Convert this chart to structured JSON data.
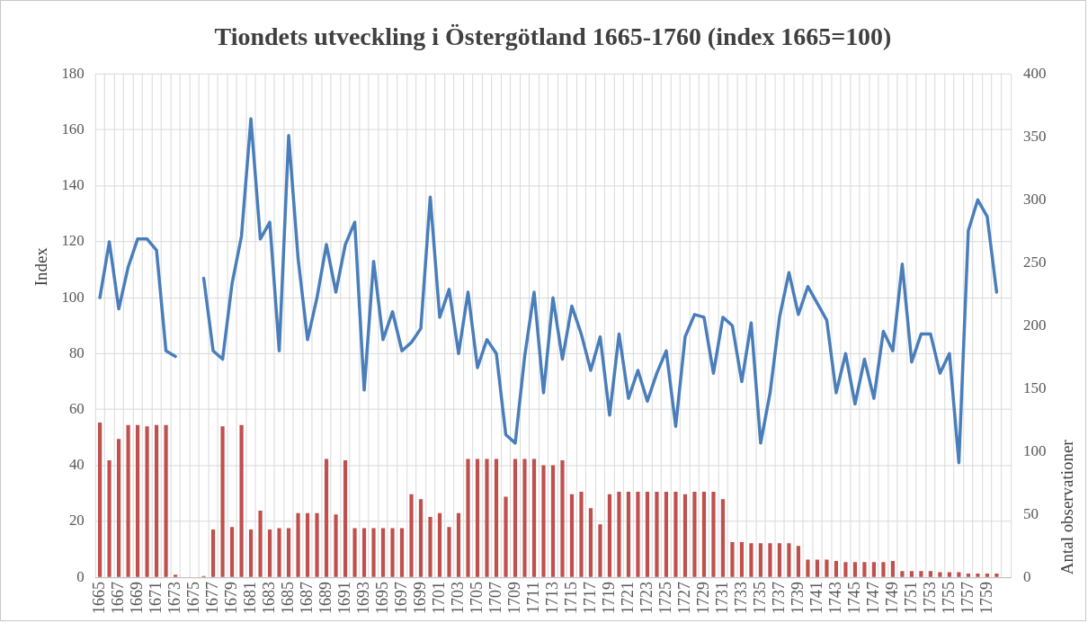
{
  "chart_data": {
    "type": "line",
    "title": "Tiondets utveckling i Östergötland 1665-1760 (index 1665=100)",
    "ylabel": "Index",
    "y2label": "Antal observationer",
    "categories": [
      "1665",
      null,
      "1667",
      null,
      "1669",
      null,
      "1671",
      null,
      "1673",
      null,
      "1675",
      null,
      "1677",
      null,
      "1679",
      null,
      "1681",
      null,
      "1683",
      null,
      "1685",
      null,
      "1687",
      null,
      "1689",
      null,
      "1691",
      null,
      "1693",
      null,
      "1695",
      null,
      "1697",
      null,
      "1699",
      null,
      "1701",
      null,
      "1703",
      null,
      "1705",
      null,
      "1707",
      null,
      "1709",
      null,
      "1711",
      null,
      "1713",
      null,
      "1715",
      null,
      "1717",
      null,
      "1719",
      null,
      "1721",
      null,
      "1723",
      null,
      "1725",
      null,
      "1727",
      null,
      "1729",
      null,
      "1731",
      null,
      "1733",
      null,
      "1735",
      null,
      "1737",
      null,
      "1739",
      null,
      "1741",
      null,
      "1743",
      null,
      "1745",
      null,
      "1747",
      null,
      "1749",
      null,
      "1751",
      null,
      "1753",
      null,
      "1755",
      null,
      "1757",
      null,
      "1759",
      null,
      null
    ],
    "series": [
      {
        "type": "bar",
        "axis": "y2",
        "color": "#c0504d",
        "values": [
          123,
          93,
          110,
          121,
          121,
          120,
          121,
          121,
          2,
          null,
          null,
          1,
          38,
          120,
          40,
          121,
          38,
          53,
          38,
          39,
          39,
          51,
          51,
          51,
          94,
          50,
          93,
          39,
          39,
          39,
          39,
          39,
          39,
          66,
          62,
          48,
          51,
          40,
          51,
          94,
          94,
          94,
          94,
          64,
          94,
          94,
          94,
          89,
          89,
          93,
          66,
          68,
          55,
          42,
          66,
          68,
          68,
          68,
          68,
          68,
          68,
          68,
          66,
          68,
          68,
          68,
          62,
          28,
          28,
          27,
          27,
          27,
          27,
          27,
          25,
          14,
          14,
          14,
          13,
          12,
          12,
          12,
          12,
          12,
          13,
          5,
          5,
          5,
          5,
          4,
          4,
          4,
          3,
          3,
          3,
          3,
          null
        ]
      },
      {
        "color": "#4a7ebb",
        "values": [
          100,
          120,
          96,
          111,
          121,
          121,
          117,
          81,
          79,
          null,
          null,
          107,
          81,
          78,
          105,
          122,
          164,
          121,
          127,
          81,
          158,
          114,
          85,
          100,
          119,
          102,
          119,
          127,
          67,
          113,
          85,
          95,
          81,
          84,
          89,
          136,
          93,
          103,
          80,
          102,
          75,
          85,
          80,
          51,
          48,
          79,
          102,
          66,
          100,
          78,
          97,
          87,
          74,
          86,
          58,
          87,
          64,
          74,
          63,
          73,
          81,
          54,
          86,
          94,
          93,
          73,
          93,
          90,
          70,
          91,
          48,
          66,
          93,
          109,
          94,
          104,
          98,
          92,
          66,
          80,
          62,
          78,
          64,
          88,
          81,
          112,
          77,
          87,
          87,
          73,
          80,
          41,
          124,
          135,
          129,
          102,
          null
        ]
      }
    ],
    "ylim": [
      0,
      180
    ],
    "yticks": [
      0,
      20,
      40,
      60,
      80,
      100,
      120,
      140,
      160,
      180
    ],
    "y2lim": [
      0,
      400
    ],
    "y2ticks": [
      0,
      50,
      100,
      150,
      200,
      250,
      300,
      350,
      400
    ],
    "grid": true,
    "marker": "none",
    "line_style": "solid"
  }
}
